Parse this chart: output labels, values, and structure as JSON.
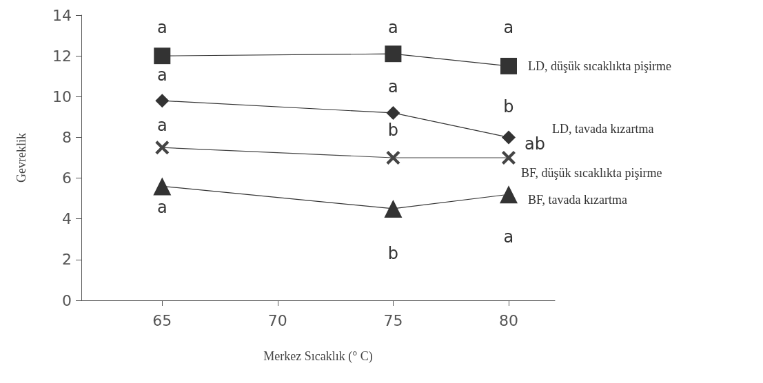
{
  "chart_data": {
    "type": "line",
    "xlabel": "Merkez Sıcaklık (° C)",
    "ylabel": "Gevreklik",
    "x": [
      65,
      75,
      80
    ],
    "xlim": [
      61.5,
      82
    ],
    "xticks": [
      65,
      70,
      75,
      80
    ],
    "ylim": [
      0,
      14
    ],
    "yticks": [
      0,
      2,
      4,
      6,
      8,
      10,
      12,
      14
    ],
    "grid": false,
    "legend": false,
    "series": [
      {
        "name": "LD, düşük sıcaklıkta pişirme",
        "color": "#333333",
        "marker": "square",
        "values": [
          12.0,
          12.1,
          11.5
        ]
      },
      {
        "name": "LD, tavada kızartma",
        "color": "#333333",
        "marker": "diamond",
        "values": [
          9.8,
          9.2,
          8.0
        ]
      },
      {
        "name": "BF, düşük sıcaklıkta pişirme",
        "color": "#444444",
        "marker": "cross",
        "values": [
          7.5,
          7.0,
          7.0
        ]
      },
      {
        "name": "BF, tavada kızartma",
        "color": "#333333",
        "marker": "triangle",
        "values": [
          5.6,
          4.5,
          5.2
        ]
      }
    ],
    "annotations": [
      {
        "text": "a",
        "x": 65,
        "y": 12.0
      },
      {
        "text": "a",
        "x": 65,
        "y": 9.8
      },
      {
        "text": "a",
        "x": 65,
        "y": 7.5
      },
      {
        "text": "a",
        "x": 65,
        "y": 5.6
      },
      {
        "text": "a",
        "x": 75,
        "y": 12.1
      },
      {
        "text": "a",
        "x": 75,
        "y": 9.2
      },
      {
        "text": "b",
        "x": 75,
        "y": 7.0
      },
      {
        "text": "b",
        "x": 75,
        "y": 4.5
      },
      {
        "text": "a",
        "x": 80,
        "y": 11.5
      },
      {
        "text": "b",
        "x": 80,
        "y": 8.0
      },
      {
        "text": "ab",
        "x": 80,
        "y": 8.0
      },
      {
        "text": "a",
        "x": 80,
        "y": 5.2
      }
    ]
  }
}
